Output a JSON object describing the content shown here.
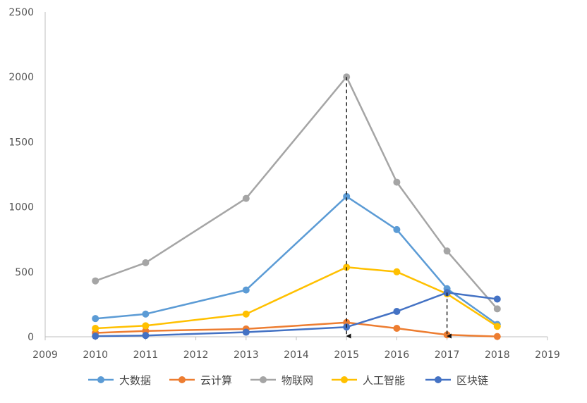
{
  "chart_data": {
    "type": "line",
    "title": "",
    "xlabel": "",
    "ylabel": "",
    "xlim": [
      2009,
      2019
    ],
    "ylim": [
      0,
      2500
    ],
    "xticks": [
      2009,
      2010,
      2011,
      2012,
      2013,
      2014,
      2015,
      2016,
      2017,
      2018,
      2019
    ],
    "yticks": [
      0,
      500,
      1000,
      1500,
      2000,
      2500
    ],
    "grid": false,
    "legend_position": "bottom",
    "series": [
      {
        "name": "大数据",
        "color": "#5B9BD5",
        "points": [
          [
            2010,
            140
          ],
          [
            2011,
            175
          ],
          [
            2013,
            360
          ],
          [
            2015,
            1080
          ],
          [
            2016,
            825
          ],
          [
            2017,
            370
          ],
          [
            2018,
            95
          ]
        ]
      },
      {
        "name": "云计算",
        "color": "#ED7D31",
        "points": [
          [
            2010,
            30
          ],
          [
            2011,
            45
          ],
          [
            2013,
            60
          ],
          [
            2015,
            110
          ],
          [
            2016,
            65
          ],
          [
            2017,
            15
          ],
          [
            2018,
            2
          ]
        ]
      },
      {
        "name": "物联网",
        "color": "#A5A5A5",
        "points": [
          [
            2010,
            430
          ],
          [
            2011,
            570
          ],
          [
            2013,
            1065
          ],
          [
            2015,
            2000
          ],
          [
            2016,
            1190
          ],
          [
            2017,
            660
          ],
          [
            2018,
            215
          ]
        ]
      },
      {
        "name": "人工智能",
        "color": "#FFC000",
        "points": [
          [
            2010,
            65
          ],
          [
            2011,
            85
          ],
          [
            2013,
            175
          ],
          [
            2015,
            535
          ],
          [
            2016,
            500
          ],
          [
            2017,
            330
          ],
          [
            2018,
            80
          ]
        ]
      },
      {
        "name": "区块链",
        "color": "#4472C4",
        "points": [
          [
            2010,
            5
          ],
          [
            2011,
            10
          ],
          [
            2013,
            35
          ],
          [
            2015,
            75
          ],
          [
            2016,
            195
          ],
          [
            2017,
            340
          ],
          [
            2018,
            290
          ]
        ]
      }
    ],
    "annotations": [
      {
        "type": "dashed-arrow-down",
        "x": 2015,
        "y_from": 2000,
        "y_to": 0
      },
      {
        "type": "dashed-arrow-down",
        "x": 2017,
        "y_from": 340,
        "y_to": 0
      }
    ]
  }
}
